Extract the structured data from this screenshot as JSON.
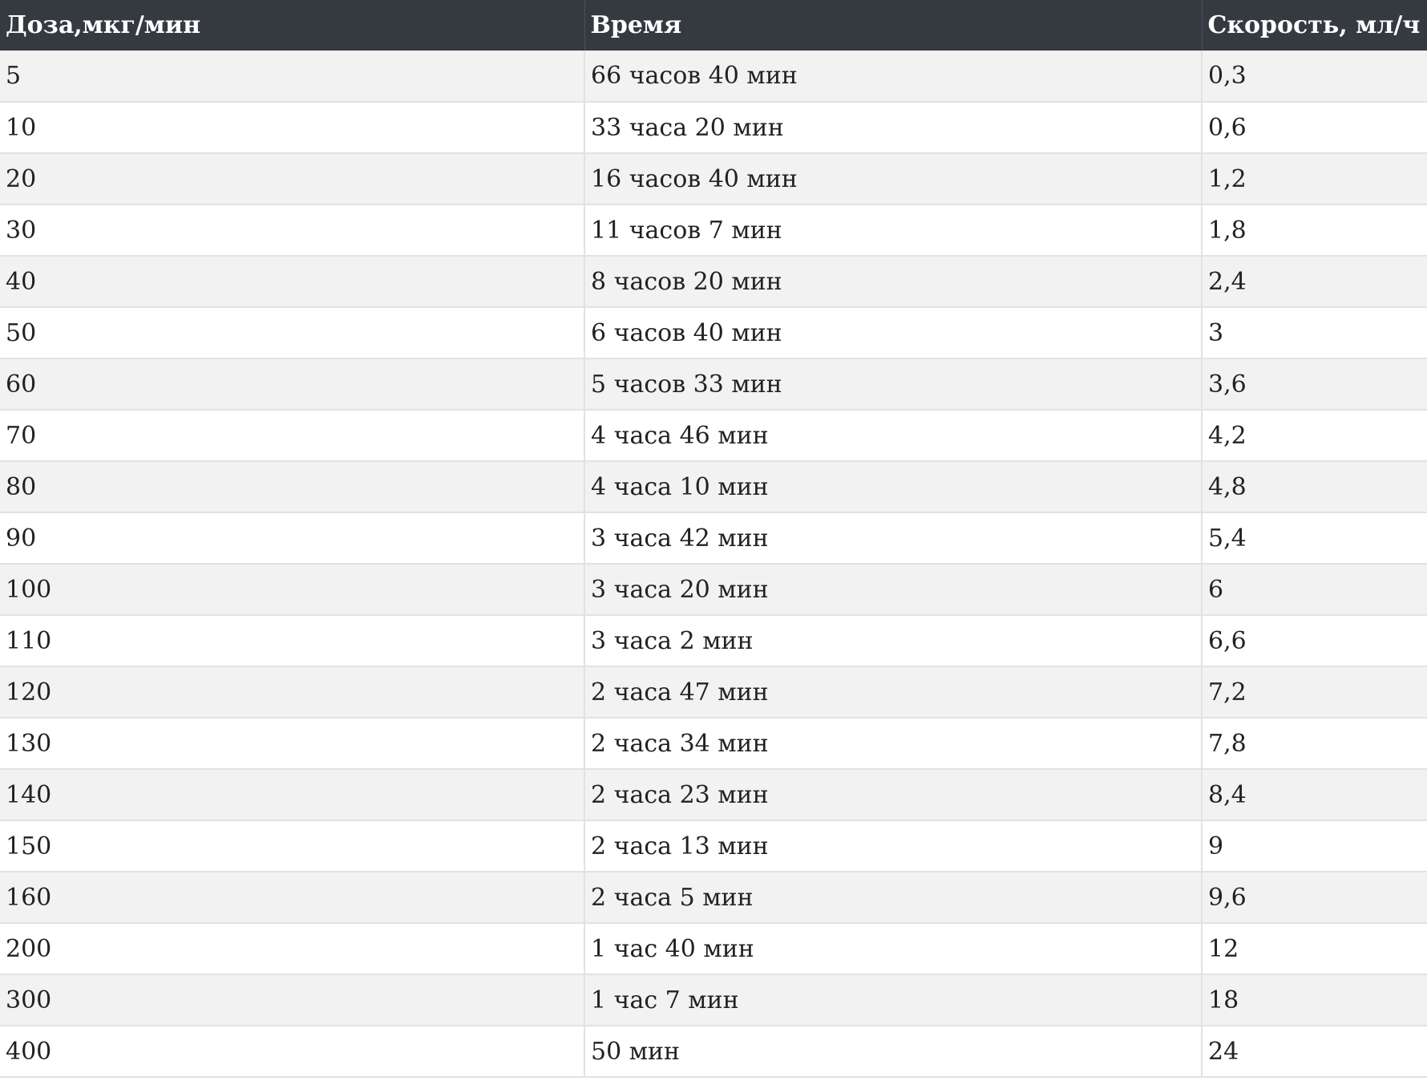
{
  "table": {
    "headers": [
      "Доза,мкг/мин",
      "Время",
      "Скорость, мл/ч"
    ],
    "rows": [
      [
        "5",
        "66 часов 40 мин",
        "0,3"
      ],
      [
        "10",
        "33 часа 20 мин",
        "0,6"
      ],
      [
        "20",
        "16 часов 40 мин",
        "1,2"
      ],
      [
        "30",
        "11 часов 7 мин",
        "1,8"
      ],
      [
        "40",
        "8 часов 20 мин",
        "2,4"
      ],
      [
        "50",
        "6 часов 40 мин",
        "3"
      ],
      [
        "60",
        "5 часов 33 мин",
        "3,6"
      ],
      [
        "70",
        "4 часа 46 мин",
        "4,2"
      ],
      [
        "80",
        "4 часа 10 мин",
        "4,8"
      ],
      [
        "90",
        "3 часа 42 мин",
        "5,4"
      ],
      [
        "100",
        "3 часа 20 мин",
        "6"
      ],
      [
        "110",
        "3 часа 2 мин",
        "6,6"
      ],
      [
        "120",
        "2 часа 47 мин",
        "7,2"
      ],
      [
        "130",
        "2 часа 34 мин",
        "7,8"
      ],
      [
        "140",
        "2 часа 23 мин",
        "8,4"
      ],
      [
        "150",
        "2 часа 13 мин",
        "9"
      ],
      [
        "160",
        "2 часа 5 мин",
        "9,6"
      ],
      [
        "200",
        "1 час 40 мин",
        "12"
      ],
      [
        "300",
        "1 час 7 мин",
        "18"
      ],
      [
        "400",
        "50 мин",
        "24"
      ]
    ]
  },
  "colors": {
    "header_bg": "#343a40",
    "header_text": "#ffffff",
    "row_odd": "#f2f2f2",
    "row_even": "#ffffff",
    "border": "#e2e2e2"
  }
}
